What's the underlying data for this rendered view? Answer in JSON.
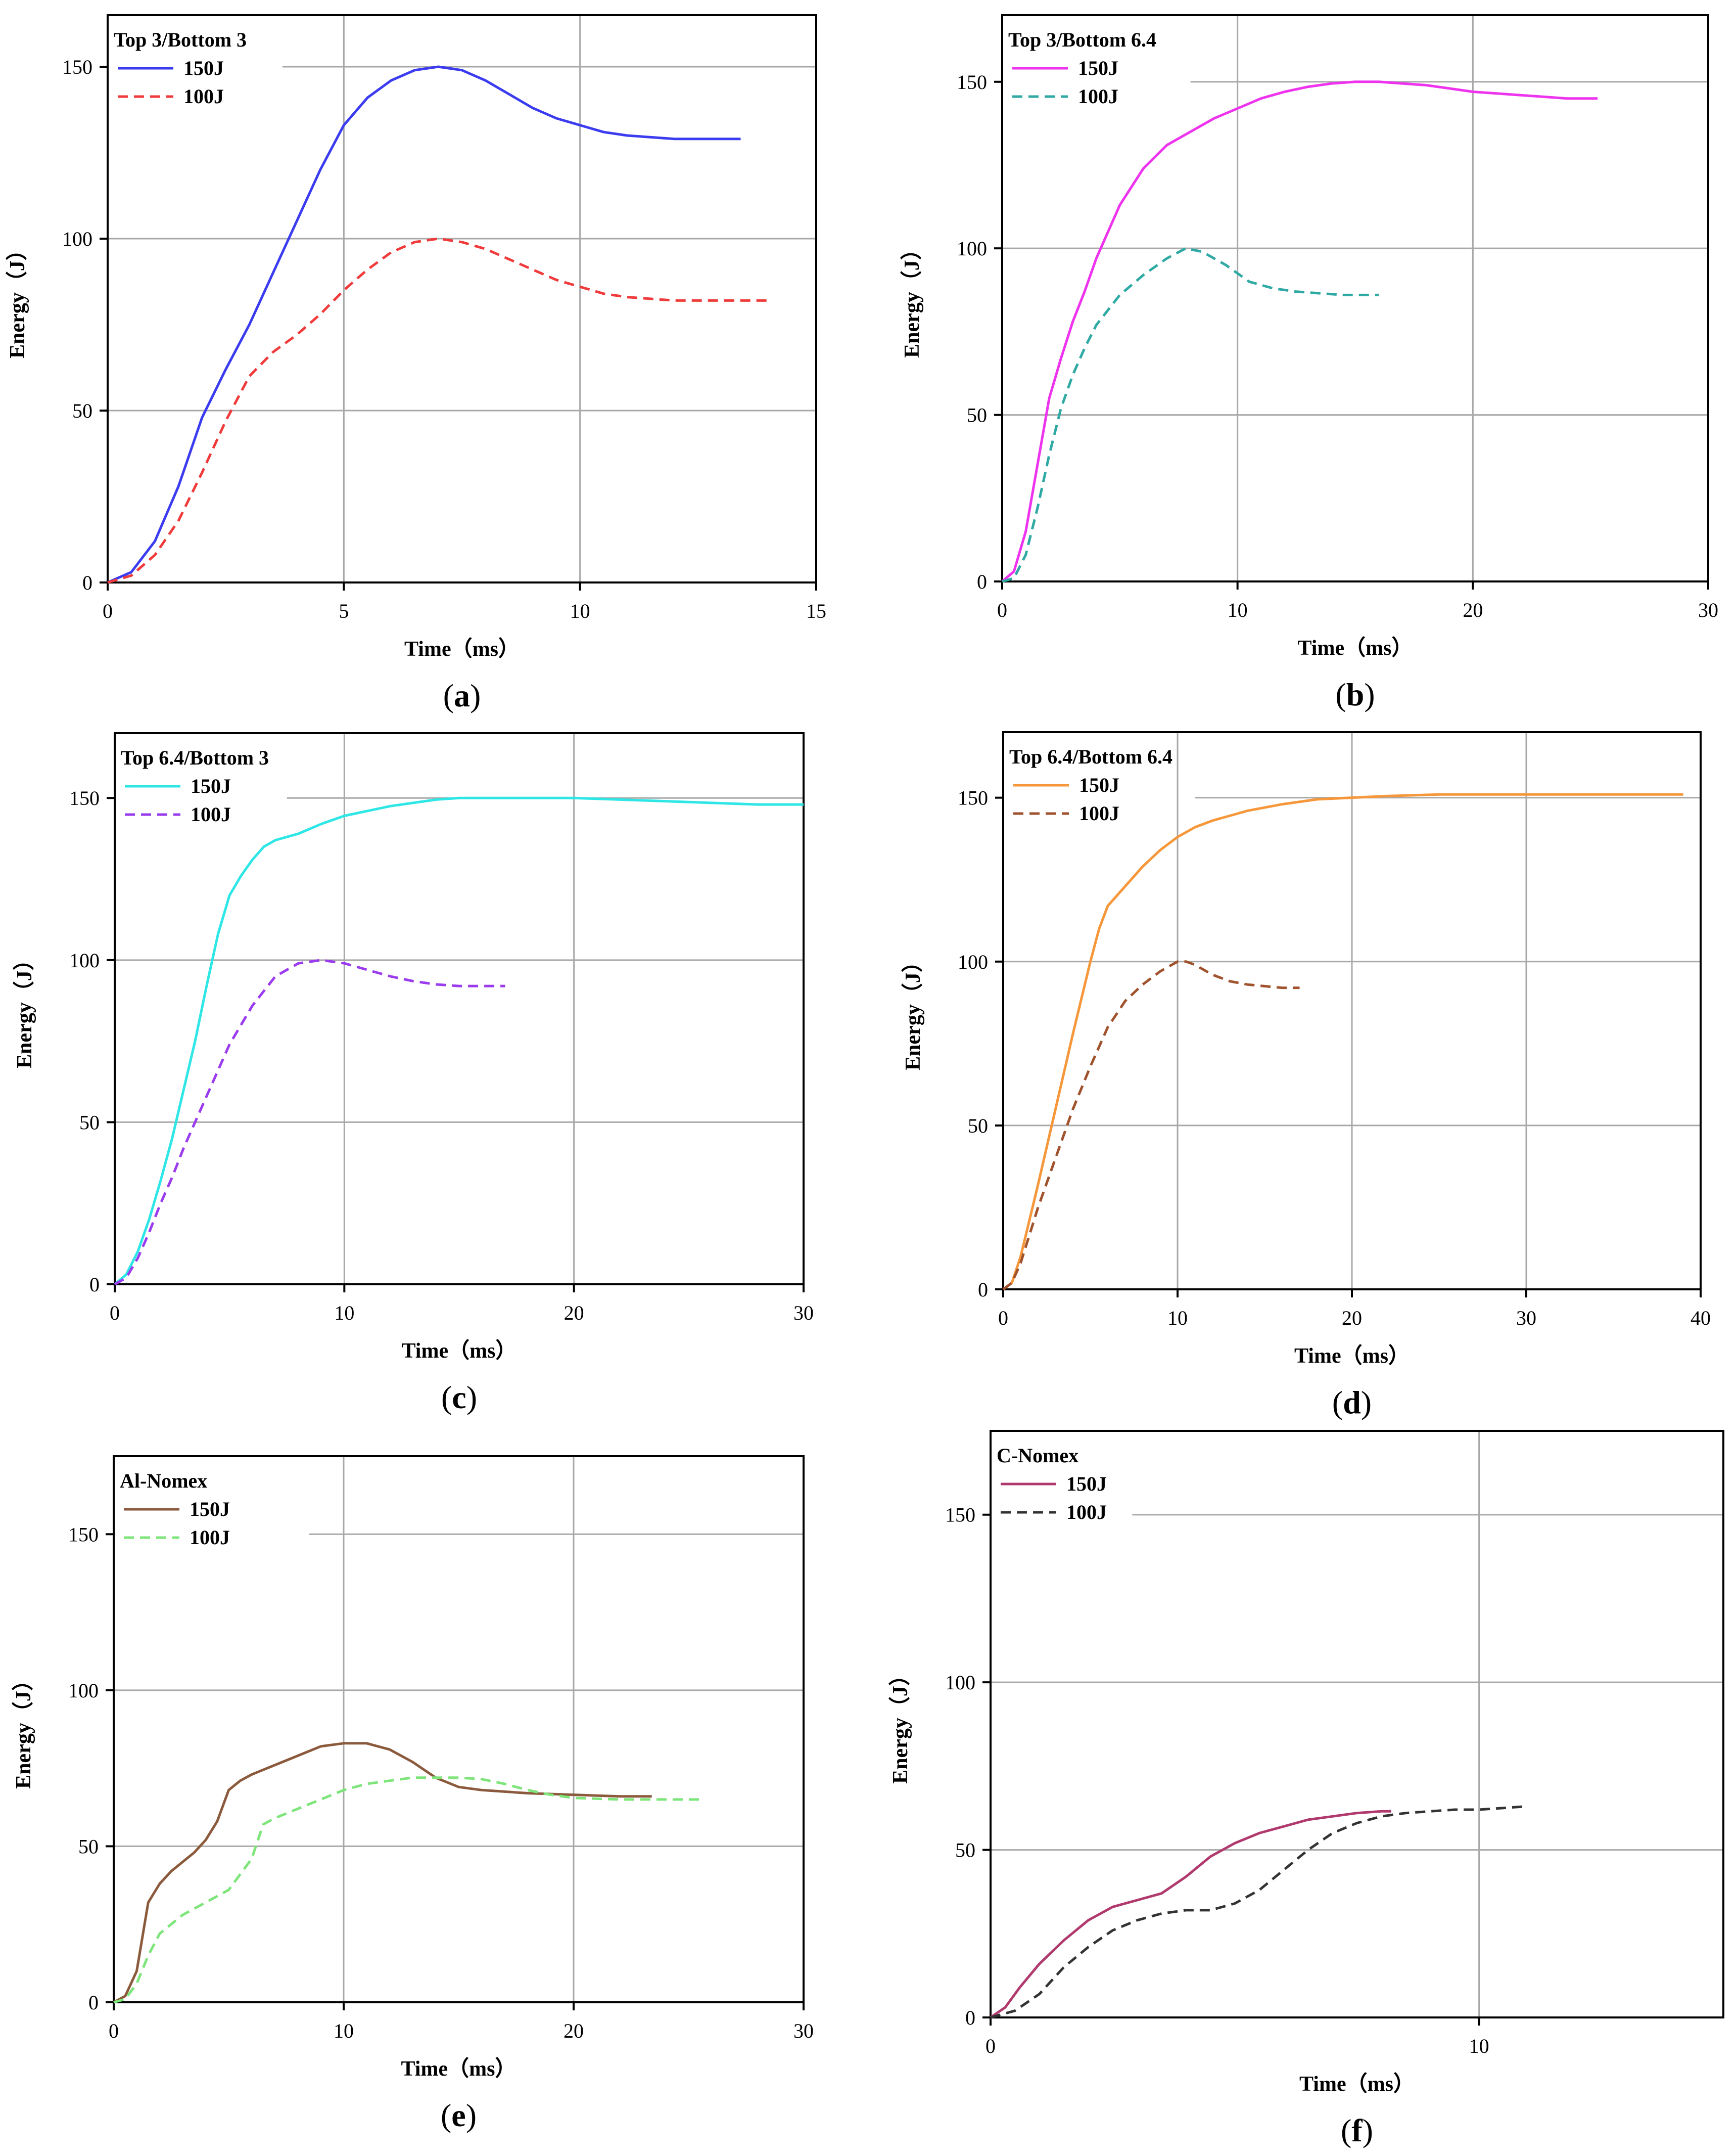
{
  "chart_data": [
    {
      "panel": "(a)",
      "label_letter": "a",
      "type": "line",
      "title": "Top 3/Bottom 3",
      "xlabel": "Time（ms）",
      "ylabel": "Energy（J）",
      "xlim": [
        0,
        15
      ],
      "ylim": [
        0,
        165
      ],
      "xticks": [
        0,
        5,
        10,
        15
      ],
      "yticks": [
        0,
        50,
        100,
        150
      ],
      "grid": true,
      "ref_line": {
        "y": 150,
        "x_from": 3.7
      },
      "legend_position": "top-left",
      "series": [
        {
          "name": "150J",
          "color": "#3b3bf0",
          "dash": false,
          "x": [
            0,
            0.5,
            1.0,
            1.5,
            2.0,
            2.5,
            3.0,
            3.5,
            4.0,
            4.5,
            5.0,
            5.5,
            6.0,
            6.5,
            7.0,
            7.5,
            8.0,
            8.5,
            9.0,
            9.5,
            10.0,
            10.5,
            11.0,
            11.5,
            12.0,
            12.5,
            13.0,
            13.4
          ],
          "y": [
            0,
            3,
            12,
            28,
            48,
            62,
            75,
            90,
            105,
            120,
            133,
            141,
            146,
            149,
            150,
            149,
            146,
            142,
            138,
            135,
            133,
            131,
            130,
            129.5,
            129,
            129,
            129,
            129
          ]
        },
        {
          "name": "100J",
          "color": "#ef3b3b",
          "dash": true,
          "x": [
            0,
            0.5,
            1.0,
            1.5,
            2.0,
            2.5,
            3.0,
            3.5,
            4.0,
            4.5,
            5.0,
            5.5,
            6.0,
            6.5,
            7.0,
            7.5,
            8.0,
            8.5,
            9.0,
            9.5,
            10.0,
            10.5,
            11.0,
            11.5,
            12.0,
            12.5,
            13.0,
            13.5,
            14.0
          ],
          "y": [
            0,
            2,
            8,
            18,
            32,
            47,
            60,
            67,
            72,
            78,
            85,
            91,
            96,
            99,
            100,
            99,
            97,
            94,
            91,
            88,
            86,
            84,
            83,
            82.5,
            82,
            82,
            82,
            82,
            82
          ]
        }
      ]
    },
    {
      "panel": "(b)",
      "label_letter": "b",
      "type": "line",
      "title": "Top 3/Bottom 6.4",
      "xlabel": "Time（ms）",
      "ylabel": "Energy（J）",
      "xlim": [
        0,
        30
      ],
      "ylim": [
        0,
        170
      ],
      "xticks": [
        0,
        10,
        20,
        30
      ],
      "yticks": [
        0,
        50,
        100,
        150
      ],
      "grid": true,
      "ref_line": {
        "y": 150,
        "x_from": 8
      },
      "legend_position": "top-left",
      "series": [
        {
          "name": "150J",
          "color": "#ee33ee",
          "dash": false,
          "x": [
            0,
            0.5,
            1.0,
            1.5,
            2.0,
            2.5,
            3.0,
            3.5,
            4.0,
            5.0,
            6.0,
            7.0,
            8.0,
            9.0,
            10.0,
            11.0,
            12.0,
            13.0,
            14.0,
            15.0,
            16.0,
            17.0,
            18.0,
            19.0,
            20.0,
            21.0,
            22.0,
            23.0,
            24.0,
            25.3
          ],
          "y": [
            0,
            3,
            15,
            35,
            55,
            67,
            78,
            87,
            97,
            113,
            124,
            131,
            135,
            139,
            142,
            145,
            147,
            148.5,
            149.5,
            150,
            150,
            149.5,
            149,
            148,
            147,
            146.5,
            146,
            145.5,
            145,
            145
          ]
        },
        {
          "name": "100J",
          "color": "#2fa9a3",
          "dash": true,
          "x": [
            0,
            0.5,
            1.0,
            1.5,
            2.0,
            2.5,
            3.0,
            3.5,
            4.0,
            5.0,
            6.0,
            7.0,
            7.8,
            8.5,
            9.5,
            10.5,
            11.5,
            12.5,
            13.5,
            14.5,
            15.5,
            16.0
          ],
          "y": [
            0,
            1,
            8,
            22,
            38,
            52,
            62,
            70,
            77,
            86,
            92,
            97,
            100,
            99,
            95,
            90,
            88,
            87,
            86.5,
            86,
            86,
            86
          ]
        }
      ]
    },
    {
      "panel": "(c)",
      "label_letter": "c",
      "type": "line",
      "title": "Top 6.4/Bottom 3",
      "xlabel": "Time（ms）",
      "ylabel": "Energy（J）",
      "xlim": [
        0,
        30
      ],
      "ylim": [
        0,
        170
      ],
      "xticks": [
        0,
        10,
        20,
        30
      ],
      "yticks": [
        0,
        50,
        100,
        150
      ],
      "grid": true,
      "ref_line": {
        "y": 150,
        "x_from": 7.5
      },
      "legend_position": "top-left",
      "series": [
        {
          "name": "150J",
          "color": "#2ee6e6",
          "dash": false,
          "x": [
            0,
            0.5,
            1.0,
            1.5,
            2.0,
            2.5,
            3.0,
            3.5,
            4.0,
            4.5,
            5.0,
            5.5,
            6.0,
            6.5,
            7.0,
            8.0,
            9.0,
            10.0,
            11.0,
            12.0,
            13.0,
            14.0,
            15.0,
            16.0,
            17.0,
            18.0,
            20.0,
            22.0,
            24.0,
            26.0,
            28.0,
            30.0
          ],
          "y": [
            0,
            3,
            10,
            20,
            32,
            45,
            60,
            75,
            92,
            108,
            120,
            126,
            131,
            135,
            137,
            139,
            142,
            144.5,
            146,
            147.5,
            148.5,
            149.5,
            150,
            150,
            150,
            150,
            150,
            149.5,
            149,
            148.5,
            148,
            148
          ]
        },
        {
          "name": "100J",
          "color": "#9b3bee",
          "dash": true,
          "x": [
            0,
            0.5,
            1.0,
            1.5,
            2.0,
            2.5,
            3.0,
            3.5,
            4.0,
            5.0,
            6.0,
            7.0,
            8.0,
            9.0,
            10.0,
            11.0,
            12.0,
            13.0,
            14.0,
            15.0,
            16.0,
            17.0
          ],
          "y": [
            0,
            2,
            8,
            16,
            25,
            33,
            42,
            50,
            58,
            74,
            86,
            95,
            99,
            100,
            99,
            97,
            95,
            93.5,
            92.5,
            92,
            92,
            92
          ]
        }
      ]
    },
    {
      "panel": "(d)",
      "label_letter": "d",
      "type": "line",
      "title": "Top 6.4/Bottom 6.4",
      "xlabel": "Time（ms）",
      "ylabel": "Energy（J）",
      "xlim": [
        0,
        40
      ],
      "ylim": [
        0,
        170
      ],
      "xticks": [
        0,
        10,
        20,
        30,
        40
      ],
      "yticks": [
        0,
        50,
        100,
        150
      ],
      "grid": true,
      "ref_line": {
        "y": 150,
        "x_from": 11
      },
      "marker_line": {
        "x": 10,
        "y_to": 142
      },
      "legend_position": "top-left",
      "series": [
        {
          "name": "150J",
          "color": "#f5973a",
          "dash": false,
          "x": [
            0,
            0.5,
            1.0,
            2.0,
            3.0,
            4.0,
            5.0,
            5.5,
            6.0,
            7.0,
            8.0,
            9.0,
            10.0,
            11.0,
            12.0,
            14.0,
            16.0,
            18.0,
            20.0,
            22.0,
            25.0,
            28.0,
            30.0,
            33.0,
            36.0,
            39.0
          ],
          "y": [
            0,
            2,
            10,
            32,
            55,
            78,
            100,
            110,
            117,
            123,
            129,
            134,
            138,
            141,
            143,
            146,
            148,
            149.5,
            150,
            150.5,
            151,
            151,
            151,
            151,
            151,
            151
          ]
        },
        {
          "name": "100J",
          "color": "#a0522d",
          "dash": true,
          "x": [
            0,
            0.5,
            1.0,
            2.0,
            3.0,
            4.0,
            5.0,
            6.0,
            7.0,
            8.0,
            9.0,
            10.0,
            10.5,
            11.0,
            12.0,
            13.0,
            14.0,
            15.0,
            16.0,
            17.0
          ],
          "y": [
            0,
            2,
            8,
            25,
            40,
            55,
            68,
            80,
            88,
            93,
            97,
            100,
            100,
            99,
            96,
            94,
            93,
            92.5,
            92,
            92
          ]
        }
      ]
    },
    {
      "panel": "(e)",
      "label_letter": "e",
      "type": "line",
      "title": "Al-Nomex",
      "xlabel": "Time（ms）",
      "ylabel": "Energy（J）",
      "xlim": [
        0,
        30
      ],
      "ylim": [
        0,
        175
      ],
      "xticks": [
        0,
        10,
        20,
        30
      ],
      "yticks": [
        0,
        50,
        100,
        150
      ],
      "grid": true,
      "ref_line": {
        "y": 150,
        "x_from": 8.5
      },
      "legend_position": "top-left",
      "series": [
        {
          "name": "150J",
          "color": "#8b5a3c",
          "dash": false,
          "x": [
            0,
            0.5,
            1.0,
            1.5,
            2.0,
            2.5,
            3.0,
            3.5,
            4.0,
            4.5,
            5.0,
            5.5,
            6.0,
            7.0,
            8.0,
            9.0,
            10.0,
            11.0,
            12.0,
            13.0,
            14.0,
            15.0,
            16.0,
            18.0,
            20.0,
            22.0,
            23.4
          ],
          "y": [
            0,
            2,
            10,
            32,
            38,
            42,
            45,
            48,
            52,
            58,
            68,
            71,
            73,
            76,
            79,
            82,
            83,
            83,
            81,
            77,
            72,
            69,
            68,
            67,
            66.5,
            66,
            66
          ]
        },
        {
          "name": "100J",
          "color": "#7ee57a",
          "dash": true,
          "x": [
            0,
            0.5,
            1.0,
            1.5,
            2.0,
            3.0,
            4.0,
            5.0,
            6.0,
            6.5,
            7.0,
            8.0,
            9.0,
            10.0,
            11.0,
            12.0,
            13.0,
            14.0,
            15.0,
            16.0,
            17.0,
            18.0,
            19.0,
            20.0,
            22.0,
            24.0,
            25.5
          ],
          "y": [
            0,
            1,
            6,
            15,
            22,
            28,
            32,
            36,
            46,
            57,
            59,
            62,
            65,
            68,
            70,
            71,
            72,
            72,
            72,
            71.5,
            70,
            68,
            66.5,
            65.5,
            65,
            65,
            65
          ]
        }
      ]
    },
    {
      "panel": "(f)",
      "label_letter": "f",
      "type": "line",
      "title": "C-Nomex",
      "xlabel": "Time（ms）",
      "ylabel": "Energy（J）",
      "xlim": [
        0,
        15
      ],
      "ylim": [
        0,
        175
      ],
      "xticks": [
        0,
        10
      ],
      "yticks": [
        0,
        50,
        100,
        150
      ],
      "grid": true,
      "ref_line": {
        "y": 150,
        "x_from": 2.9
      },
      "legend_position": "top-left",
      "series": [
        {
          "name": "150J",
          "color": "#b03a6e",
          "dash": false,
          "x": [
            0,
            0.3,
            0.6,
            1.0,
            1.5,
            2.0,
            2.5,
            3.0,
            3.5,
            4.0,
            4.5,
            5.0,
            5.5,
            6.0,
            6.5,
            7.0,
            7.5,
            8.0,
            8.2
          ],
          "y": [
            0,
            3,
            9,
            16,
            23,
            29,
            33,
            35,
            37,
            42,
            48,
            52,
            55,
            57,
            59,
            60,
            61,
            61.5,
            61.5
          ]
        },
        {
          "name": "100J",
          "color": "#333333",
          "dash": true,
          "x": [
            0,
            0.5,
            1.0,
            1.5,
            2.0,
            2.5,
            3.0,
            3.5,
            4.0,
            4.5,
            5.0,
            5.5,
            6.0,
            6.5,
            7.0,
            7.5,
            8.0,
            8.5,
            9.0,
            9.5,
            10.0,
            10.5,
            11.0
          ],
          "y": [
            0,
            2,
            7,
            15,
            21,
            26,
            29,
            31,
            32,
            32,
            34,
            38,
            44,
            50,
            55,
            58,
            60,
            61,
            61.5,
            62,
            62,
            62.5,
            63
          ]
        }
      ]
    }
  ]
}
